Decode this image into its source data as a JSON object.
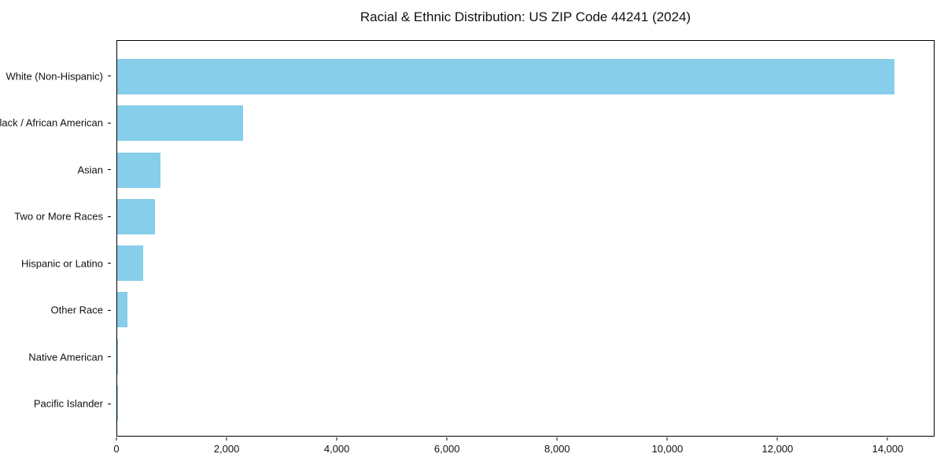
{
  "chart_data": {
    "type": "bar",
    "orientation": "horizontal",
    "title": "Racial & Ethnic Distribution: US ZIP Code 44241 (2024)",
    "categories": [
      "White (Non-Hispanic)",
      "Black / African American",
      "Asian",
      "Two or More Races",
      "Hispanic or Latino",
      "Other Race",
      "Native American",
      "Pacific Islander"
    ],
    "values": [
      14140,
      2290,
      785,
      690,
      470,
      180,
      12,
      4
    ],
    "xlabel": "",
    "ylabel": "",
    "xlim": [
      0,
      14850
    ],
    "x_ticks": [
      0,
      2000,
      4000,
      6000,
      8000,
      10000,
      12000,
      14000
    ],
    "x_tick_labels": [
      "0",
      "2,000",
      "4,000",
      "6,000",
      "8,000",
      "10,000",
      "12,000",
      "14,000"
    ],
    "grid": false,
    "legend": null,
    "bar_color": "#87CEEB",
    "frame_color": "#000000",
    "background_color": "#ffffff"
  }
}
